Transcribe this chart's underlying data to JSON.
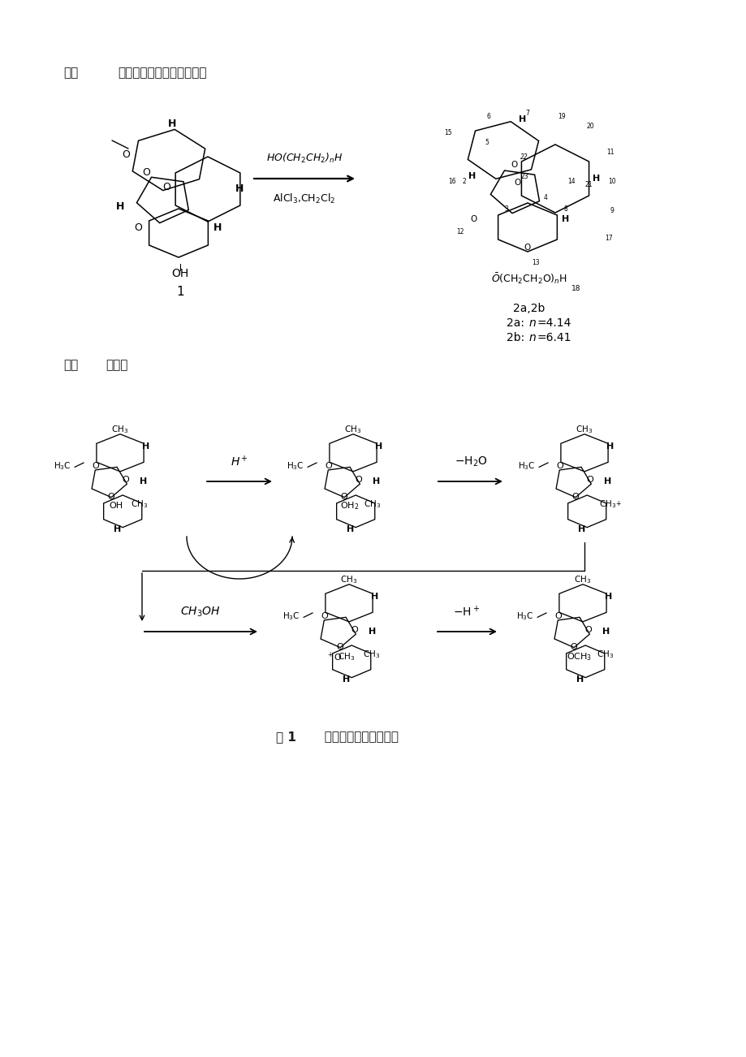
{
  "background_color": "#ffffff",
  "page_width": 9.2,
  "page_height": 13.02,
  "dpi": 100,
  "section2_header_1": "二、",
  "section2_header_2": "二氢青蒿素的化学合成路径",
  "section3_header_1": "三、",
  "section3_header_2": "蒿甲醚",
  "figure_caption_bold": "图 1",
  "figure_caption_rest": "  双氢青蒿素的醚化机理",
  "reaction1_top": "HO(CH$_2$CH$_2$)$_n$H",
  "reaction1_bot": "AlCl$_3$,CH$_2$Cl$_2$",
  "compound1_oh": "$\\bar{O}$H",
  "compound1_num": "1",
  "compound2_sidechain": "$\\bar{O}$(CH$_2$CH$_2$O)$_n$H",
  "compound2_sub18": "18",
  "c2_label1": "2a,2b",
  "c2_label2": "2a:",
  "c2_label2i": "n",
  "c2_label2v": "=4.14",
  "c2_label3": "2b:",
  "c2_label3i": "n",
  "c2_label3v": "=6.41",
  "arr1_top": "H$^+$",
  "arr2_top": "$-$H$_2$O",
  "arr3_top": "CH$_3$OH",
  "arr4_top": "$-$H$^+$",
  "text_color": "#1a1a1a"
}
